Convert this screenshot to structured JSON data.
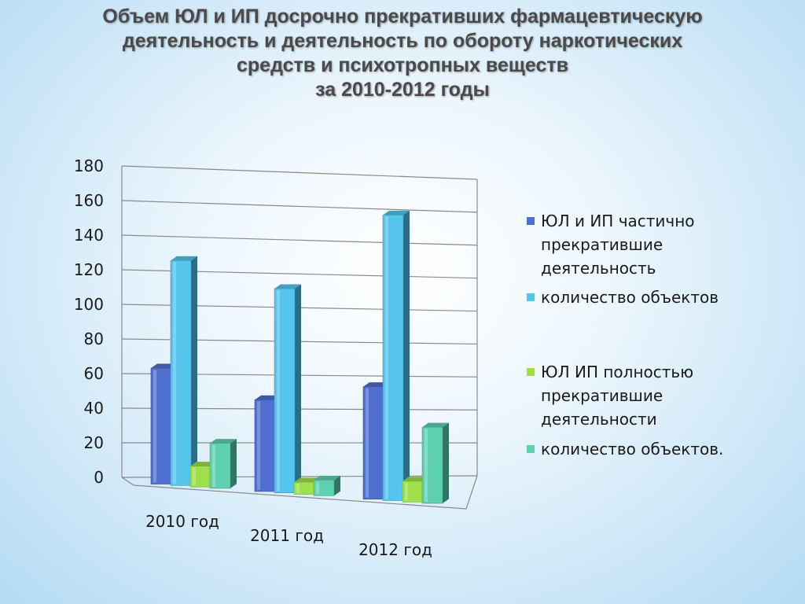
{
  "title": {
    "line1": "Объем ЮЛ и ИП досрочно прекративших фармацевтическую",
    "line2": "деятельность и деятельность по обороту наркотических",
    "line3": "средств и психотропных веществ",
    "line4": "за 2010-2012 годы"
  },
  "chart_data": {
    "type": "bar",
    "title": "Объем ЮЛ и ИП досрочно прекративших фармацевтическую деятельность и деятельность по обороту наркотических средств и психотропных веществ за 2010-2012 годы",
    "categories": [
      "2010 год",
      "2011 год",
      "2012 год"
    ],
    "series": [
      {
        "name": "ЮЛ  и ИП частично прекратившие деятельность",
        "values": [
          67,
          53,
          65
        ],
        "color": "#4f6fd1"
      },
      {
        "name": "количество объектов",
        "values": [
          130,
          118,
          165
        ],
        "color": "#55c5ee"
      },
      {
        "name": "ЮЛ ИП полностью прекратившие деятельности",
        "values": [
          12,
          7,
          12
        ],
        "color": "#9fe04a"
      },
      {
        "name": "количество объектов.",
        "values": [
          26,
          9,
          44
        ],
        "color": "#5ed1b0"
      }
    ],
    "yticks": [
      0,
      20,
      40,
      60,
      80,
      100,
      120,
      140,
      160,
      180
    ],
    "ylim": [
      0,
      180
    ],
    "grid": true,
    "legend_position": "right",
    "style": "3d-clustered-column"
  },
  "legend": [
    {
      "lines": [
        "ЮЛ  и ИП частично",
        "прекратившие",
        "деятельность"
      ],
      "color": "#4f6fd1"
    },
    {
      "lines": [
        "количество объектов"
      ],
      "color": "#55c5ee"
    },
    {
      "lines": [
        "ЮЛ ИП полностью",
        "прекратившие",
        "деятельности"
      ],
      "color": "#9fe04a"
    },
    {
      "lines": [
        "количество объектов."
      ],
      "color": "#5ed1b0"
    }
  ]
}
